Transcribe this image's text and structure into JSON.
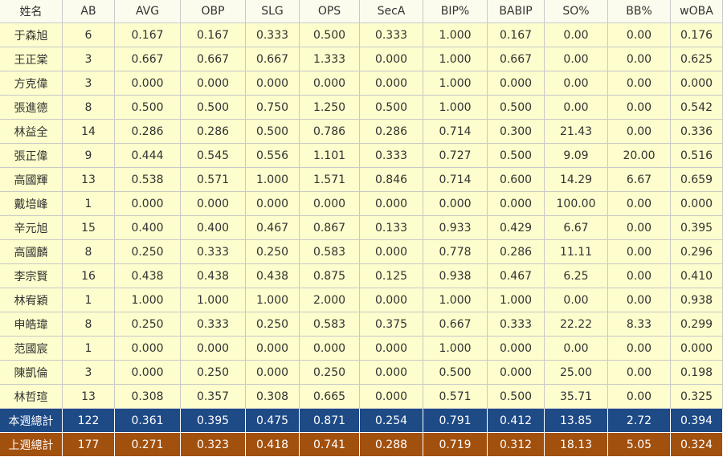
{
  "table": {
    "header": [
      "姓名",
      "AB",
      "AVG",
      "OBP",
      "SLG",
      "OPS",
      "SecA",
      "BIP%",
      "BABIP",
      "SO%",
      "BB%",
      "wOBA"
    ],
    "rows": [
      [
        "于森旭",
        "6",
        "0.167",
        "0.167",
        "0.333",
        "0.500",
        "0.333",
        "1.000",
        "0.167",
        "0.00",
        "0.00",
        "0.176"
      ],
      [
        "王正棠",
        "3",
        "0.667",
        "0.667",
        "0.667",
        "1.333",
        "0.000",
        "1.000",
        "0.667",
        "0.00",
        "0.00",
        "0.625"
      ],
      [
        "方克偉",
        "3",
        "0.000",
        "0.000",
        "0.000",
        "0.000",
        "0.000",
        "1.000",
        "0.000",
        "0.00",
        "0.00",
        "0.000"
      ],
      [
        "張進德",
        "8",
        "0.500",
        "0.500",
        "0.750",
        "1.250",
        "0.500",
        "1.000",
        "0.500",
        "0.00",
        "0.00",
        "0.542"
      ],
      [
        "林益全",
        "14",
        "0.286",
        "0.286",
        "0.500",
        "0.786",
        "0.286",
        "0.714",
        "0.300",
        "21.43",
        "0.00",
        "0.336"
      ],
      [
        "張正偉",
        "9",
        "0.444",
        "0.545",
        "0.556",
        "1.101",
        "0.333",
        "0.727",
        "0.500",
        "9.09",
        "20.00",
        "0.516"
      ],
      [
        "高國輝",
        "13",
        "0.538",
        "0.571",
        "1.000",
        "1.571",
        "0.846",
        "0.714",
        "0.600",
        "14.29",
        "6.67",
        "0.659"
      ],
      [
        "戴培峰",
        "1",
        "0.000",
        "0.000",
        "0.000",
        "0.000",
        "0.000",
        "0.000",
        "0.000",
        "100.00",
        "0.00",
        "0.000"
      ],
      [
        "辛元旭",
        "15",
        "0.400",
        "0.400",
        "0.467",
        "0.867",
        "0.133",
        "0.933",
        "0.429",
        "6.67",
        "0.00",
        "0.395"
      ],
      [
        "高國麟",
        "8",
        "0.250",
        "0.333",
        "0.250",
        "0.583",
        "0.000",
        "0.778",
        "0.286",
        "11.11",
        "0.00",
        "0.296"
      ],
      [
        "李宗賢",
        "16",
        "0.438",
        "0.438",
        "0.438",
        "0.875",
        "0.125",
        "0.938",
        "0.467",
        "6.25",
        "0.00",
        "0.410"
      ],
      [
        "林宥穎",
        "1",
        "1.000",
        "1.000",
        "1.000",
        "2.000",
        "0.000",
        "1.000",
        "1.000",
        "0.00",
        "0.00",
        "0.938"
      ],
      [
        "申皓瑋",
        "8",
        "0.250",
        "0.333",
        "0.250",
        "0.583",
        "0.375",
        "0.667",
        "0.333",
        "22.22",
        "8.33",
        "0.299"
      ],
      [
        "范國宸",
        "1",
        "0.000",
        "0.000",
        "0.000",
        "0.000",
        "0.000",
        "1.000",
        "0.000",
        "0.00",
        "0.00",
        "0.000"
      ],
      [
        "陳凱倫",
        "3",
        "0.000",
        "0.250",
        "0.000",
        "0.250",
        "0.000",
        "0.500",
        "0.000",
        "25.00",
        "0.00",
        "0.198"
      ],
      [
        "林哲瑄",
        "13",
        "0.308",
        "0.357",
        "0.308",
        "0.665",
        "0.000",
        "0.571",
        "0.500",
        "35.71",
        "0.00",
        "0.325"
      ]
    ],
    "totals": [
      [
        "本週總計",
        "122",
        "0.361",
        "0.395",
        "0.475",
        "0.871",
        "0.254",
        "0.791",
        "0.412",
        "13.85",
        "2.72",
        "0.394"
      ],
      [
        "上週總計",
        "177",
        "0.271",
        "0.323",
        "0.418",
        "0.741",
        "0.288",
        "0.719",
        "0.312",
        "18.13",
        "5.05",
        "0.324"
      ]
    ]
  }
}
